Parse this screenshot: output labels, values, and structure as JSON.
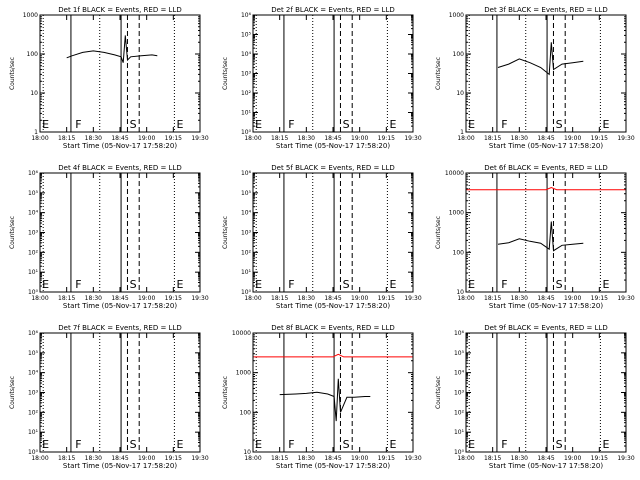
{
  "figure": {
    "x_tick_labels": [
      "18:00",
      "18:15",
      "18:30",
      "18:45",
      "19:00",
      "19:15",
      "19:30"
    ],
    "x_axis_label": "Start Time (05-Nov-17 17:58:20)",
    "y_axis_label": "Counts/sec"
  },
  "chart_data": [
    {
      "type": "line",
      "title": "Det 1f BLACK = Events, RED = LLD",
      "scale": "log",
      "ylim": [
        1,
        1000
      ],
      "y_tick_labels": [
        "1",
        "10",
        "100",
        "1000"
      ],
      "marks": [
        "E",
        "F",
        "S",
        "E"
      ],
      "series": [
        {
          "color": "#000000",
          "x": [
            18.25,
            18.3,
            18.4,
            18.5,
            18.6,
            18.7,
            18.76,
            18.78,
            18.8,
            18.82,
            18.85,
            18.95,
            19.05,
            19.1
          ],
          "y": [
            80,
            90,
            110,
            120,
            110,
            95,
            85,
            60,
            300,
            70,
            85,
            90,
            95,
            90
          ]
        }
      ]
    },
    {
      "type": "line",
      "title": "Det 2f BLACK = Events, RED = LLD",
      "scale": "log",
      "ylim": [
        1,
        1000000
      ],
      "y_tick_labels": [
        "10⁰",
        "10¹",
        "10²",
        "10³",
        "10⁴",
        "10⁵",
        "10⁶"
      ],
      "marks": [
        "E",
        "F",
        "S",
        "E"
      ],
      "series": []
    },
    {
      "type": "line",
      "title": "Det 3f BLACK = Events, RED = LLD",
      "scale": "log",
      "ylim": [
        1,
        1000
      ],
      "y_tick_labels": [
        "1",
        "10",
        "100",
        "1000"
      ],
      "marks": [
        "E",
        "F",
        "S",
        "E"
      ],
      "series": [
        {
          "color": "#000000",
          "x": [
            18.3,
            18.4,
            18.5,
            18.6,
            18.7,
            18.78,
            18.8,
            18.82,
            18.9,
            19.0,
            19.1
          ],
          "y": [
            45,
            55,
            75,
            60,
            45,
            30,
            200,
            40,
            55,
            60,
            65
          ]
        }
      ]
    },
    {
      "type": "line",
      "title": "Det 4f BLACK = Events, RED = LLD",
      "scale": "log",
      "ylim": [
        1,
        1000000
      ],
      "y_tick_labels": [
        "10⁰",
        "10¹",
        "10²",
        "10³",
        "10⁴",
        "10⁵",
        "10⁶"
      ],
      "marks": [
        "E",
        "F",
        "S",
        "E"
      ],
      "series": []
    },
    {
      "type": "line",
      "title": "Det 5f BLACK = Events, RED = LLD",
      "scale": "log",
      "ylim": [
        1,
        1000000
      ],
      "y_tick_labels": [
        "10⁰",
        "10¹",
        "10²",
        "10³",
        "10⁴",
        "10⁵",
        "10⁶"
      ],
      "marks": [
        "E",
        "F",
        "S",
        "E"
      ],
      "series": []
    },
    {
      "type": "line",
      "title": "Det 6f BLACK = Events, RED = LLD",
      "scale": "log",
      "ylim": [
        10,
        10000
      ],
      "y_tick_labels": [
        "10",
        "100",
        "1000",
        "10000"
      ],
      "marks": [
        "E",
        "F",
        "S",
        "E"
      ],
      "series": [
        {
          "color": "#ff0000",
          "x": [
            18.0,
            18.75,
            18.8,
            18.85,
            19.5
          ],
          "y": [
            3800,
            3800,
            4300,
            3800,
            3800
          ]
        },
        {
          "color": "#000000",
          "x": [
            18.3,
            18.4,
            18.5,
            18.6,
            18.7,
            18.78,
            18.8,
            18.82,
            18.9,
            19.0,
            19.1
          ],
          "y": [
            160,
            175,
            220,
            190,
            170,
            120,
            600,
            110,
            150,
            160,
            170
          ]
        }
      ]
    },
    {
      "type": "line",
      "title": "Det 7f BLACK = Events, RED = LLD",
      "scale": "log",
      "ylim": [
        1,
        1000000
      ],
      "y_tick_labels": [
        "10⁰",
        "10¹",
        "10²",
        "10³",
        "10⁴",
        "10⁵",
        "10⁶"
      ],
      "marks": [
        "E",
        "F",
        "S",
        "E"
      ],
      "series": []
    },
    {
      "type": "line",
      "title": "Det 8f BLACK = Events, RED = LLD",
      "scale": "log",
      "ylim": [
        10,
        10000
      ],
      "y_tick_labels": [
        "10",
        "100",
        "1000",
        "10000"
      ],
      "marks": [
        "E",
        "F",
        "S",
        "E"
      ],
      "series": [
        {
          "color": "#ff0000",
          "x": [
            18.0,
            18.75,
            18.8,
            18.85,
            19.5
          ],
          "y": [
            2500,
            2500,
            2900,
            2500,
            2500
          ]
        },
        {
          "color": "#000000",
          "x": [
            18.25,
            18.4,
            18.5,
            18.6,
            18.7,
            18.76,
            18.78,
            18.8,
            18.82,
            18.88,
            18.95,
            19.05,
            19.1
          ],
          "y": [
            280,
            290,
            300,
            320,
            290,
            250,
            60,
            700,
            100,
            240,
            240,
            250,
            250
          ]
        }
      ]
    },
    {
      "type": "line",
      "title": "Det 9f BLACK = Events, RED = LLD",
      "scale": "log",
      "ylim": [
        1,
        1000000
      ],
      "y_tick_labels": [
        "10⁰",
        "10¹",
        "10²",
        "10³",
        "10⁴",
        "10⁵",
        "10⁶"
      ],
      "marks": [
        "E",
        "F",
        "S",
        "E"
      ],
      "series": []
    }
  ]
}
